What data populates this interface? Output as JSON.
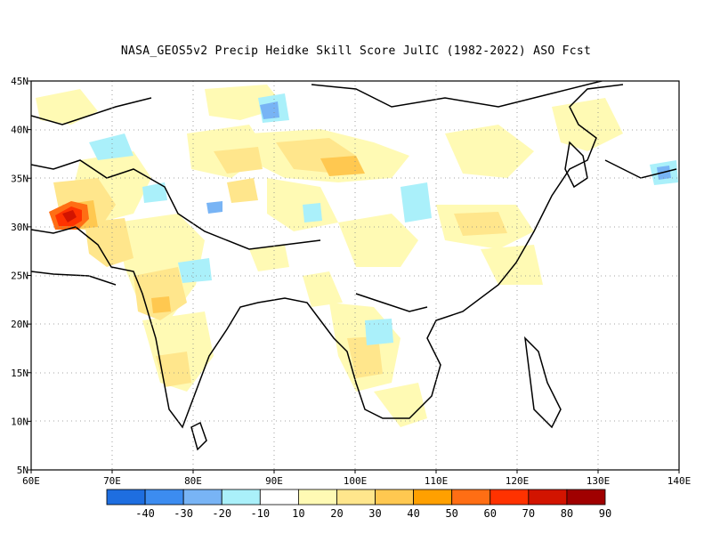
{
  "title": "NASA_GEOS5v2 Precip Heidke Skill Score JulIC (1982-2022) ASO Fcst",
  "map": {
    "lon_range": [
      60,
      140
    ],
    "lat_range": [
      5,
      45
    ],
    "lon_ticks": [
      "60E",
      "70E",
      "80E",
      "90E",
      "100E",
      "110E",
      "120E",
      "130E",
      "140E"
    ],
    "lat_ticks": [
      "5N",
      "10N",
      "15N",
      "20N",
      "25N",
      "30N",
      "35N",
      "40N",
      "45N"
    ],
    "grid": "dotted"
  },
  "colorbar": {
    "labels": [
      "-40",
      "-30",
      "-20",
      "-10",
      "10",
      "20",
      "30",
      "40",
      "50",
      "60",
      "70",
      "80",
      "90"
    ],
    "colors": [
      "#1e6ee0",
      "#3c8cf0",
      "#78b4f5",
      "#aaf0fa",
      "#ffffff",
      "#fffab4",
      "#ffe68c",
      "#ffc850",
      "#ffa000",
      "#ff6e14",
      "#ff3200",
      "#d21400",
      "#a00000"
    ]
  }
}
